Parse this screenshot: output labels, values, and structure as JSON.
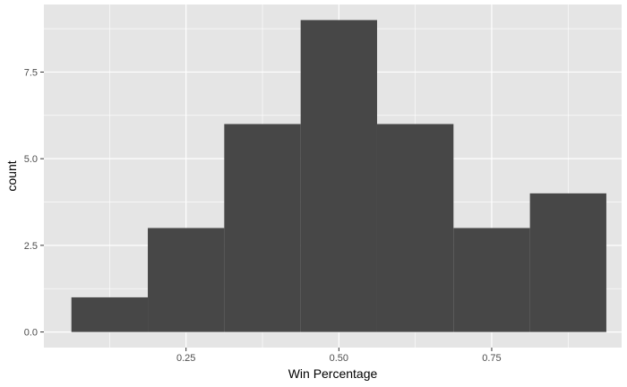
{
  "chart_data": {
    "type": "bar",
    "xlabel": "Win Percentage",
    "ylabel": "count",
    "xlim": [
      0.0175,
      0.9625
    ],
    "ylim": [
      -0.45,
      9.45
    ],
    "x_ticks": [
      0.25,
      0.5,
      0.75
    ],
    "x_tick_labels": [
      "0.25",
      "0.50",
      "0.75"
    ],
    "x_minor_ticks": [
      0.125,
      0.375,
      0.625,
      0.875
    ],
    "y_ticks": [
      0,
      2.5,
      5,
      7.5
    ],
    "y_tick_labels": [
      "0.0",
      "2.5",
      "5.0",
      "7.5"
    ],
    "y_minor_ticks": [
      1.25,
      3.75,
      6.25,
      8.75
    ],
    "bins": [
      {
        "x0": 0.0625,
        "x1": 0.1875,
        "count": 1
      },
      {
        "x0": 0.1875,
        "x1": 0.3125,
        "count": 3
      },
      {
        "x0": 0.3125,
        "x1": 0.4375,
        "count": 6
      },
      {
        "x0": 0.4375,
        "x1": 0.5625,
        "count": 9
      },
      {
        "x0": 0.5625,
        "x1": 0.6875,
        "count": 6
      },
      {
        "x0": 0.6875,
        "x1": 0.8125,
        "count": 3
      },
      {
        "x0": 0.8125,
        "x1": 0.9375,
        "count": 4
      }
    ],
    "grid": true,
    "panel_color": "#e5e5e5",
    "grid_color": "#ffffff",
    "bar_color": "#474747"
  }
}
